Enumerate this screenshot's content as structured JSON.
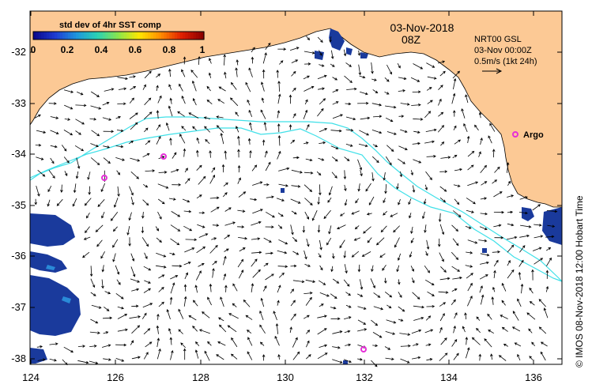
{
  "title": {
    "date": "03-Nov-2018",
    "time": "08Z"
  },
  "info": {
    "line1": "NRT00 GSL",
    "line2": "03-Nov 00:00Z",
    "line3": "0.5m/s (1kt 24h)"
  },
  "colorbar": {
    "title": "std dev of 4hr SST comp",
    "ticks": [
      "0",
      "0.2",
      "0.4",
      "0.6",
      "0.8",
      "1"
    ],
    "colors": [
      "#0a0a8c",
      "#1e3cd2",
      "#1e96dc",
      "#2ad2b4",
      "#8ce64a",
      "#ffe600",
      "#ff8c00",
      "#e02000",
      "#8c0000"
    ]
  },
  "axes": {
    "x_ticks": [
      "124",
      "126",
      "128",
      "130",
      "132",
      "134",
      "136"
    ],
    "y_ticks": [
      "-32",
      "-33",
      "-34",
      "-35",
      "-36",
      "-37",
      "-38"
    ]
  },
  "argo_label": "Argo",
  "credit": "© IMOS 08-Nov-2018 12:00 Hobart Time",
  "colors": {
    "land": "#fcc995",
    "contour": "#3fe0e8",
    "argo": "#e62fd8"
  }
}
